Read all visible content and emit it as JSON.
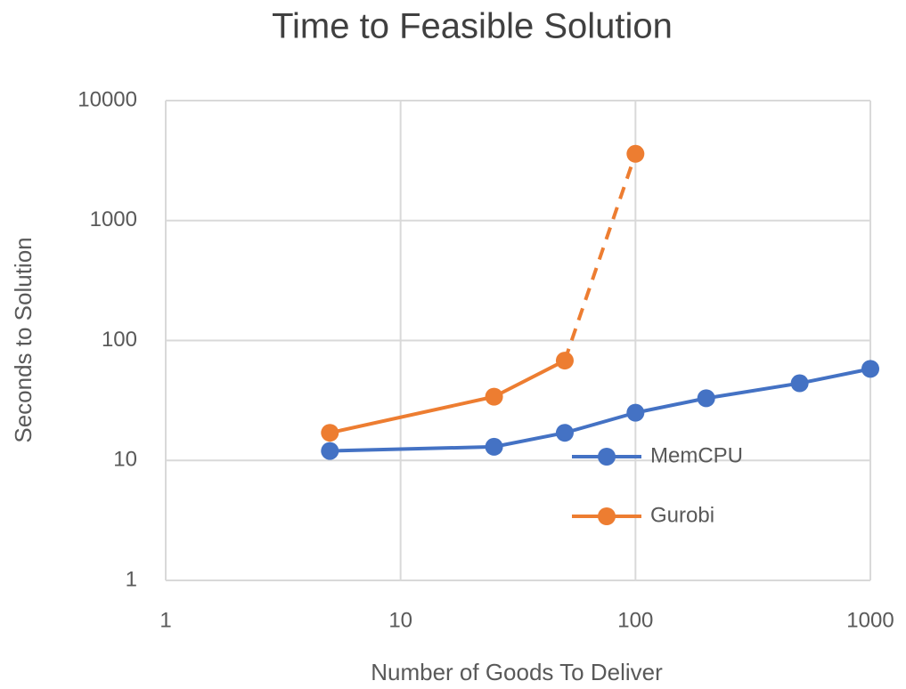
{
  "chart_data": {
    "type": "line",
    "title": "Time to Feasible Solution",
    "x_label": "Number of Goods To Deliver",
    "y_label": "Seconds to Solution",
    "x_log": true,
    "y_log": true,
    "grid": true,
    "legend": "inside",
    "xlim": [
      1,
      1000
    ],
    "ylim": [
      1,
      10000
    ],
    "xticks": [
      1,
      10,
      100,
      1000
    ],
    "yticks": [
      1,
      10,
      100,
      1000,
      10000
    ],
    "series": [
      {
        "name": "MemCPU",
        "color": "#4472c4",
        "x": [
          5,
          25,
          50,
          100,
          200,
          500,
          1000
        ],
        "values": [
          12,
          13,
          17,
          25,
          33,
          44,
          58
        ]
      },
      {
        "name": "Gurobi",
        "color": "#ed7d31",
        "x": [
          5,
          25,
          50,
          100
        ],
        "values": [
          17,
          34,
          68,
          3600
        ],
        "dash_last_segment": true
      }
    ]
  }
}
